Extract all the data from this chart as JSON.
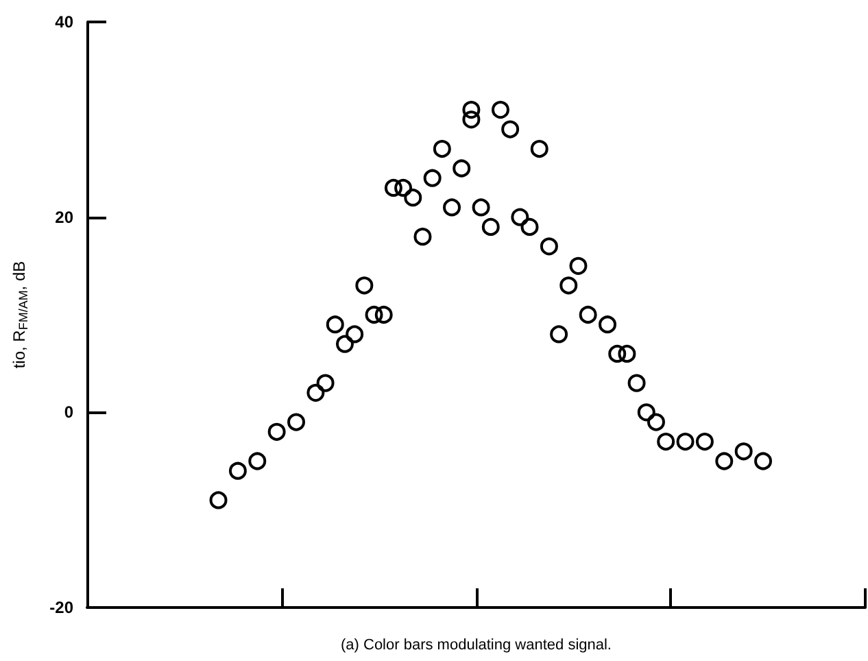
{
  "chart_data": {
    "type": "scatter",
    "xlabel": "(a) Color bars modulating wanted signal.",
    "ylabel": "tio, R$_{FM/AM}$, dB",
    "categories": [
      null,
      null,
      null,
      null,
      null,
      null,
      null,
      null,
      null,
      null,
      null,
      null,
      null,
      null,
      null,
      null,
      null,
      null,
      null,
      null,
      null,
      null,
      null,
      null,
      null,
      null,
      null,
      null,
      null,
      null,
      null,
      null,
      null,
      null,
      null,
      null,
      null,
      null,
      null,
      null,
      null,
      null,
      null,
      null,
      null,
      null,
      null,
      null,
      null,
      null,
      null,
      null,
      null,
      null,
      null,
      null,
      null,
      null,
      null,
      null,
      null,
      null,
      null,
      null,
      null,
      null,
      null,
      null,
      null,
      null,
      null,
      null,
      null,
      null,
      null,
      null,
      null,
      null,
      null,
      null
    ],
    "series": [
      {
        "color": "#000000",
        "values": [
          null,
          null,
          null,
          null,
          null,
          null,
          null,
          null,
          null,
          null,
          null,
          null,
          null,
          -9,
          null,
          -6,
          null,
          -5,
          null,
          -2,
          null,
          -1,
          null,
          2,
          3,
          9,
          7,
          8,
          13,
          10,
          10,
          23,
          23,
          22,
          18,
          24,
          27,
          21,
          25,
          31,
          21,
          19,
          31,
          29,
          20,
          19,
          27,
          17,
          8,
          13,
          15,
          10,
          null,
          9,
          6,
          6,
          3,
          0,
          -1,
          -3,
          null,
          -3,
          null,
          -3,
          null,
          -5,
          null,
          -4,
          null,
          -5,
          null,
          null,
          null,
          null,
          null,
          null,
          null,
          null,
          null,
          null
        ]
      },
      {
        "color": "#000000",
        "values": [
          null,
          null,
          null,
          null,
          null,
          null,
          null,
          null,
          null,
          null,
          null,
          null,
          null,
          null,
          null,
          null,
          null,
          null,
          null,
          null,
          null,
          null,
          null,
          null,
          null,
          null,
          null,
          null,
          null,
          null,
          null,
          null,
          null,
          null,
          null,
          null,
          null,
          null,
          null,
          30,
          null,
          null,
          null,
          null,
          null,
          null,
          null,
          null,
          null,
          null,
          null,
          null,
          null,
          null,
          null,
          null,
          null,
          null,
          null,
          null,
          null,
          null,
          null,
          null,
          null,
          null,
          null,
          null,
          null,
          null,
          null,
          null,
          null,
          null,
          null,
          null,
          null,
          null,
          null,
          null
        ]
      }
    ],
    "marker": "circle",
    "ylim": [
      -20,
      40
    ],
    "yticks": [
      -20,
      0,
      20,
      40
    ],
    "tick_labels": "y",
    "grid": false
  }
}
